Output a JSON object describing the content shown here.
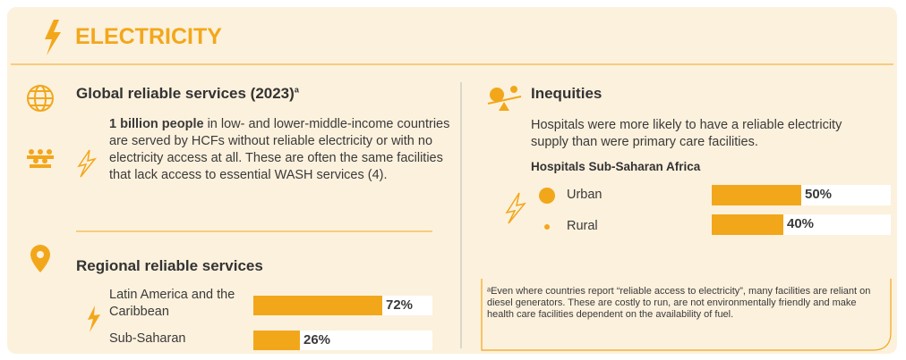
{
  "header": {
    "title": "ELECTRICITY"
  },
  "global": {
    "heading": "Global reliable services (2023)",
    "heading_note": "a",
    "bold_text": "1 billion people",
    "text": " in low- and lower-middle-income countries are served by HCFs without reliable electricity or with no electricity access at all. These are often the same facilities that lack access to essential WASH services (4)."
  },
  "regional": {
    "heading": "Regional reliable services",
    "xlim": [
      0,
      100
    ],
    "bars": [
      {
        "label": "Latin America and the Caribbean",
        "value": 72,
        "value_label": "72%"
      },
      {
        "label": "Sub-Saharan",
        "value": 26,
        "value_label": "26%"
      }
    ]
  },
  "inequities": {
    "heading": "Inequities",
    "text": "Hospitals were more likely to have a reliable electricity supply than were primary care facilities.",
    "subheading": "Hospitals Sub-Saharan Africa",
    "xlim": [
      0,
      100
    ],
    "bars": [
      {
        "label": "Urban",
        "value": 50,
        "value_label": "50%"
      },
      {
        "label": "Rural",
        "value": 40,
        "value_label": "40%"
      }
    ]
  },
  "footnote": {
    "text": "ᵃEven where countries report “reliable access to electricity”, many facilities are reliant on diesel generators. These are costly to run, are not environmentally friendly and make health care facilities dependent on the availability of fuel."
  }
}
